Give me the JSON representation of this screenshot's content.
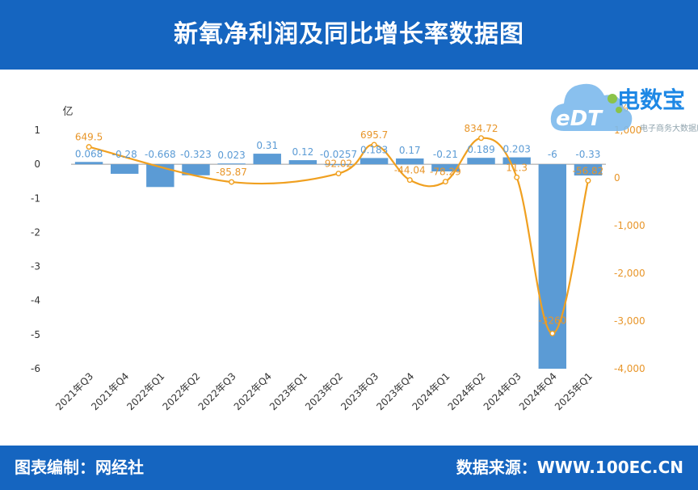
{
  "header": {
    "title": "新氧净利润及同比增长率数据图"
  },
  "footer": {
    "left": "图表编制：网经社",
    "right": "数据来源：WWW.100EC.CN"
  },
  "logo": {
    "brand": "电数宝",
    "sub": "电子商务大数据库",
    "mark": "eDT",
    "icon": "cloud-icon"
  },
  "colors": {
    "header_bg": "#1565c0",
    "bar": "#5b9bd5",
    "line": "#f0a020",
    "bar_label": "#5b9bd5",
    "line_label": "#e8962a",
    "axis_text": "#333333"
  },
  "chart_data": {
    "type": "bar",
    "categories": [
      "2021年Q3",
      "2021年Q4",
      "2022年Q1",
      "2022年Q2",
      "2022年Q3",
      "2022年Q4",
      "2023年Q1",
      "2023年Q2",
      "2023年Q3",
      "2023年Q4",
      "2024年Q1",
      "2024年Q2",
      "2024年Q3",
      "2024年Q4",
      "2025年Q1"
    ],
    "series": [
      {
        "name": "",
        "axis": "left",
        "type": "bar",
        "values": [
          0.068,
          -0.28,
          -0.668,
          -0.323,
          0.023,
          0.31,
          0.12,
          -0.0257,
          0.183,
          0.17,
          -0.21,
          0.189,
          0.203,
          -6,
          -0.33
        ],
        "labels": [
          "0.068",
          "-0.28",
          "-0.668",
          "-0.323",
          "0.023",
          "0.31",
          "0.12",
          "-0.0257",
          "0.183",
          "0.17",
          "-0.21",
          "0.189",
          "0.203",
          "-6",
          "-0.33"
        ]
      },
      {
        "name": "",
        "axis": "right",
        "type": "line",
        "values": [
          649.5,
          null,
          null,
          null,
          -85.87,
          null,
          null,
          92.02,
          695.7,
          -44.04,
          -78.29,
          834.72,
          11.3,
          -3260,
          -56.82
        ],
        "labels": [
          "649.5",
          "",
          "",
          "",
          "-85.87",
          "",
          "",
          "92.02",
          "695.7",
          "-44.04",
          "-78.29",
          "834.72",
          "11.3",
          "-3260",
          "-56.82"
        ]
      }
    ],
    "y_left": {
      "unit": "亿",
      "range": [
        -6,
        1
      ],
      "ticks": [
        1,
        0,
        -1,
        -2,
        -3,
        -4,
        -5,
        -6
      ]
    },
    "y_right": {
      "unit": "%",
      "range": [
        -4000,
        1000
      ],
      "ticks": [
        1000,
        0,
        -1000,
        -2000,
        -3000,
        -4000
      ],
      "tick_labels": [
        "1,000",
        "0",
        "-1,000",
        "-2,000",
        "-3,000",
        "-4,000"
      ]
    },
    "grid": false,
    "legend": "none"
  }
}
